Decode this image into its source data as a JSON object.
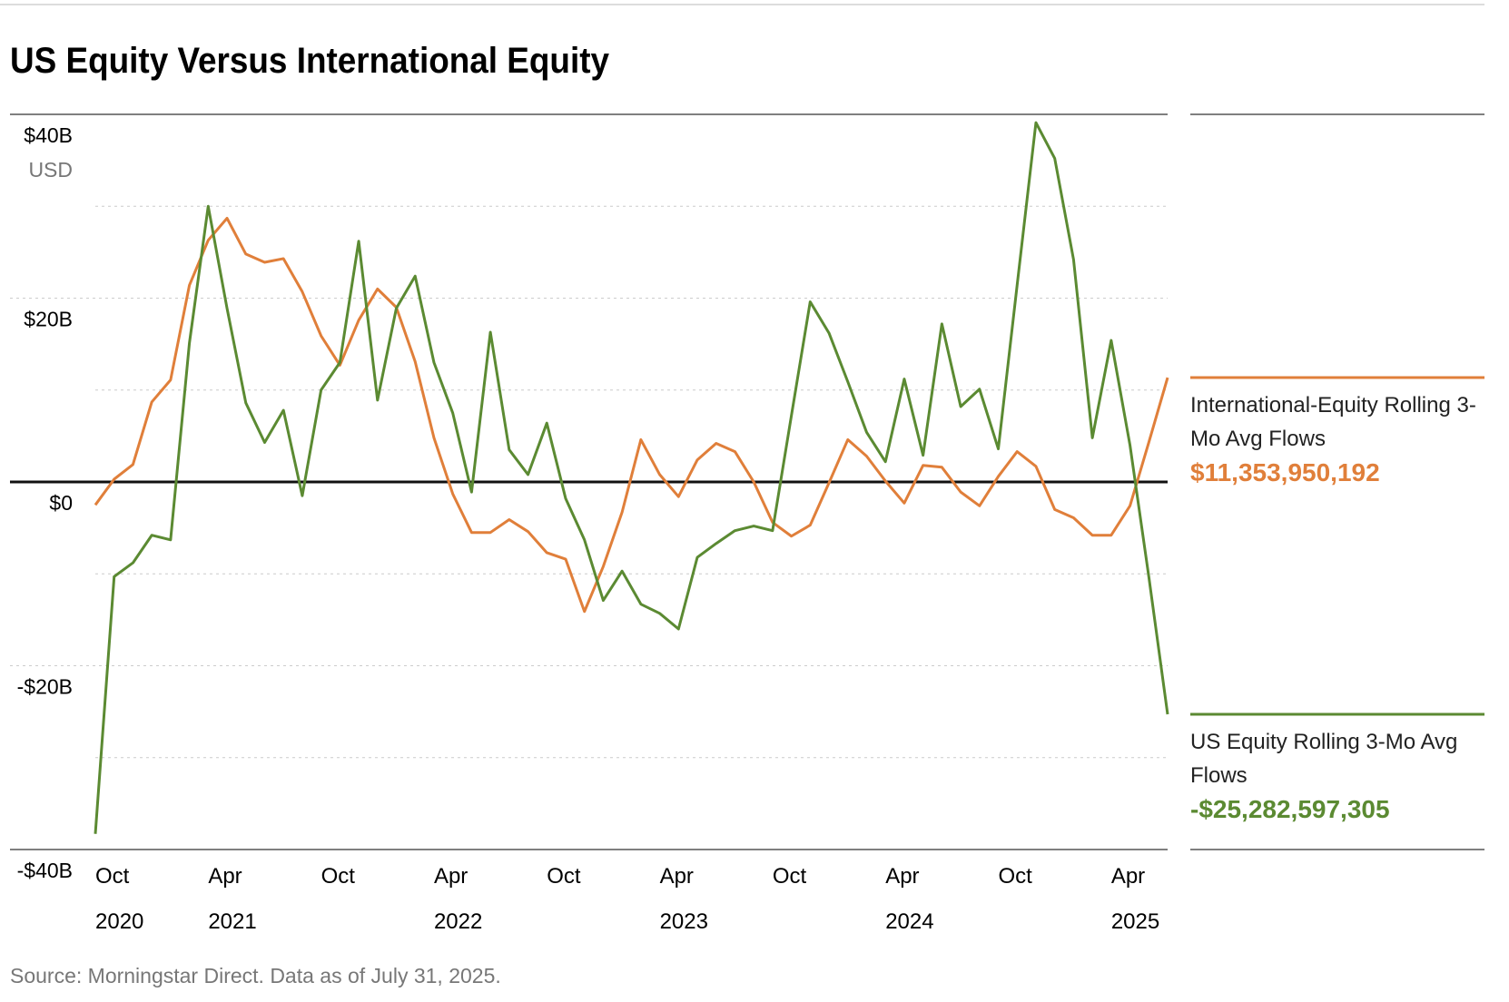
{
  "chart_data": {
    "type": "line",
    "title": "US Equity Versus International Equity",
    "y_unit": "USD",
    "source": "Source: Morningstar Direct. Data as of July 31, 2025.",
    "x": [
      "2020-10",
      "2020-11",
      "2020-12",
      "2021-01",
      "2021-02",
      "2021-03",
      "2021-04",
      "2021-05",
      "2021-06",
      "2021-07",
      "2021-08",
      "2021-09",
      "2021-10",
      "2021-11",
      "2021-12",
      "2022-01",
      "2022-02",
      "2022-03",
      "2022-04",
      "2022-05",
      "2022-06",
      "2022-07",
      "2022-08",
      "2022-09",
      "2022-10",
      "2022-11",
      "2022-12",
      "2023-01",
      "2023-02",
      "2023-03",
      "2023-04",
      "2023-05",
      "2023-06",
      "2023-07",
      "2023-08",
      "2023-09",
      "2023-10",
      "2023-11",
      "2023-12",
      "2024-01",
      "2024-02",
      "2024-03",
      "2024-04",
      "2024-05",
      "2024-06",
      "2024-07",
      "2024-08",
      "2024-09",
      "2024-10",
      "2024-11",
      "2024-12",
      "2025-01",
      "2025-02",
      "2025-03",
      "2025-04",
      "2025-05",
      "2025-06",
      "2025-07"
    ],
    "xticks": [
      {
        "value": "2020-10",
        "label": "Oct",
        "year": "2020"
      },
      {
        "value": "2021-04",
        "label": "Apr",
        "year": "2021"
      },
      {
        "value": "2021-10",
        "label": "Oct"
      },
      {
        "value": "2022-04",
        "label": "Apr",
        "year": "2022"
      },
      {
        "value": "2022-10",
        "label": "Oct"
      },
      {
        "value": "2023-04",
        "label": "Apr",
        "year": "2023"
      },
      {
        "value": "2023-10",
        "label": "Oct"
      },
      {
        "value": "2024-04",
        "label": "Apr",
        "year": "2024"
      },
      {
        "value": "2024-10",
        "label": "Oct"
      },
      {
        "value": "2025-04",
        "label": "Apr",
        "year": "2025"
      }
    ],
    "ylim": [
      -40,
      40
    ],
    "yticks": [
      {
        "value": 40,
        "label": "$40B"
      },
      {
        "value": 20,
        "label": "$20B"
      },
      {
        "value": 0,
        "label": "$0"
      },
      {
        "value": -20,
        "label": "-$20B"
      },
      {
        "value": -40,
        "label": "-$40B"
      }
    ],
    "minor_yticks": [
      30,
      10,
      -10,
      -30
    ],
    "grid": true,
    "series": [
      {
        "name": "International-Equity Rolling 3-Mo Avg Flows",
        "color": "#e07f3a",
        "values": [
          -2.5,
          0.3,
          1.9,
          8.7,
          11.1,
          21.4,
          26.3,
          28.7,
          24.8,
          23.9,
          24.3,
          20.7,
          15.9,
          12.7,
          17.6,
          21.0,
          19.0,
          13.1,
          4.8,
          -1.3,
          -5.5,
          -5.5,
          -4.1,
          -5.4,
          -7.7,
          -8.4,
          -14.1,
          -9.2,
          -3.3,
          4.6,
          0.8,
          -1.6,
          2.4,
          4.2,
          3.3,
          0.0,
          -4.4,
          -5.9,
          -4.7,
          -0.1,
          4.6,
          2.8,
          0.1,
          -2.3,
          1.8,
          1.6,
          -1.1,
          -2.6,
          0.6,
          3.3,
          1.7,
          -3.0,
          -3.9,
          -5.8,
          -5.8,
          -2.6,
          4.3,
          11.353950192
        ],
        "value_labels": [
          null,
          null,
          null,
          null,
          null,
          null,
          null,
          null,
          null,
          null,
          null,
          null,
          null,
          null,
          null,
          null,
          null,
          null,
          null,
          null,
          null,
          null,
          null,
          null,
          null,
          null,
          null,
          null,
          null,
          null,
          null,
          null,
          null,
          null,
          null,
          null,
          null,
          null,
          null,
          null,
          null,
          null,
          null,
          null,
          null,
          null,
          null,
          null,
          null,
          null,
          null,
          null,
          null,
          null,
          null,
          null,
          null,
          "$11,353,950,192"
        ]
      },
      {
        "name": "US Equity Rolling 3-Mo Avg Flows",
        "color": "#5b8a32",
        "values": [
          -38.3,
          -10.3,
          -8.8,
          -5.8,
          -6.3,
          15.1,
          30.0,
          18.9,
          8.6,
          4.3,
          7.8,
          -1.5,
          10.0,
          13.0,
          26.2,
          8.9,
          18.9,
          22.4,
          13.0,
          7.5,
          -1.1,
          16.3,
          3.5,
          0.8,
          6.4,
          -1.8,
          -6.3,
          -12.9,
          -9.7,
          -13.3,
          -14.3,
          -16.0,
          -8.2,
          -6.7,
          -5.3,
          -4.8,
          -5.3,
          7.2,
          19.6,
          16.2,
          10.9,
          5.4,
          2.2,
          11.2,
          2.9,
          17.2,
          8.2,
          10.1,
          3.6,
          21.4,
          39.1,
          35.2,
          24.2,
          4.8,
          15.4,
          4.0,
          -10.3,
          -25.282597305
        ],
        "value_labels": [
          null,
          null,
          null,
          null,
          null,
          null,
          null,
          null,
          null,
          null,
          null,
          null,
          null,
          null,
          null,
          null,
          null,
          null,
          null,
          null,
          null,
          null,
          null,
          null,
          null,
          null,
          null,
          null,
          null,
          null,
          null,
          null,
          null,
          null,
          null,
          null,
          null,
          null,
          null,
          null,
          null,
          null,
          null,
          null,
          null,
          null,
          null,
          null,
          null,
          null,
          null,
          null,
          null,
          null,
          null,
          null,
          null,
          "-$25,282,597,305"
        ]
      }
    ]
  }
}
